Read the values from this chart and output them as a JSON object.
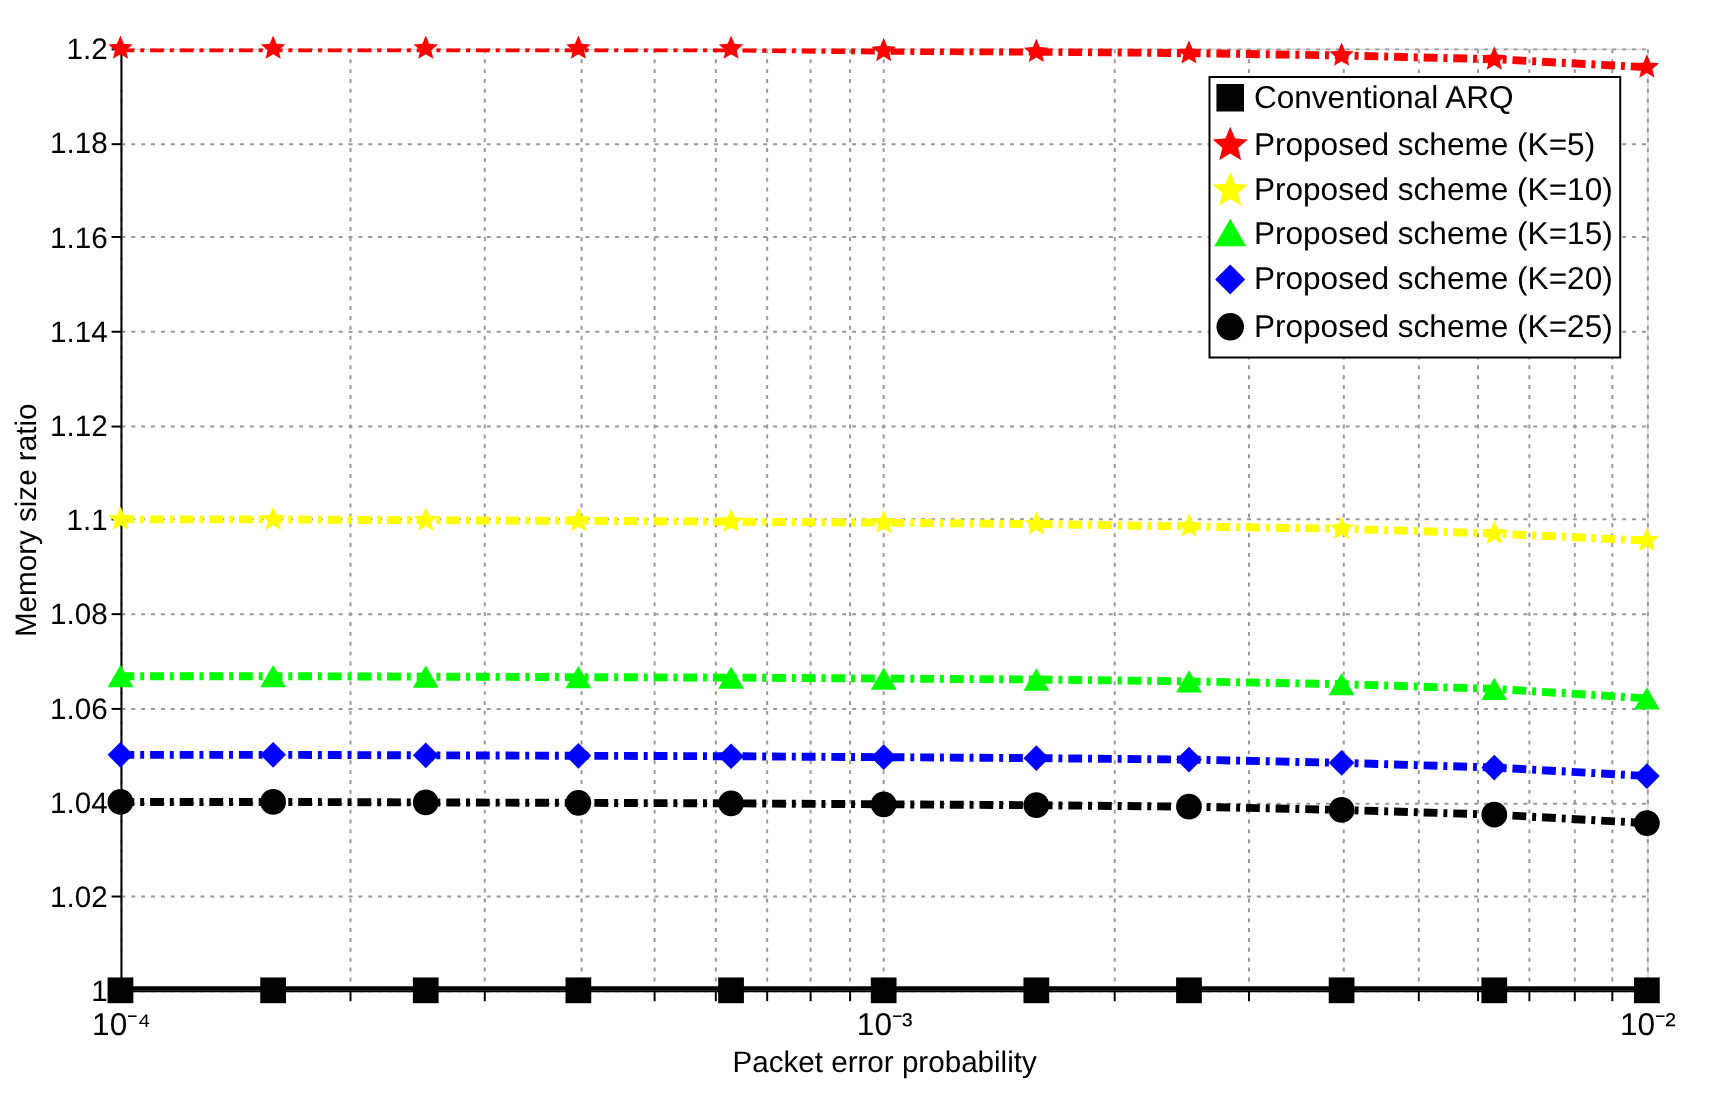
{
  "chart_data": {
    "type": "line",
    "xlabel": "Packet error probability",
    "ylabel": "Memory size ratio",
    "log": "x",
    "x": [
      0.0001,
      0.0001585,
      0.0002512,
      0.0003981,
      0.000631,
      0.001,
      0.001585,
      0.002512,
      0.003981,
      0.00631,
      0.01
    ],
    "series": [
      {
        "name": "Conventional ARQ",
        "color": "#000000",
        "marker": "square",
        "line_style": "solid",
        "values": [
          1,
          1,
          1,
          1,
          1,
          1,
          1,
          1,
          1,
          1,
          1
        ]
      },
      {
        "name": "Proposed scheme (K=5)",
        "color": "#ff0000",
        "marker": "star",
        "line_style": "dashed",
        "values": [
          1.2,
          1.2,
          1.2,
          1.2,
          1.2,
          1.1995,
          1.1993,
          1.199,
          1.1985,
          1.1977,
          1.196
        ]
      },
      {
        "name": "Proposed scheme (K=10)",
        "color": "#ffff00",
        "marker": "star",
        "line_style": "dashed",
        "values": [
          1.1,
          1.1,
          1.0998,
          1.0997,
          1.0995,
          1.0993,
          1.099,
          1.0985,
          1.098,
          1.097,
          1.0955
        ]
      },
      {
        "name": "Proposed scheme (K=15)",
        "color": "#00ff00",
        "marker": "triangle",
        "line_style": "dashed",
        "values": [
          1.0667,
          1.0667,
          1.0666,
          1.0665,
          1.0664,
          1.0662,
          1.066,
          1.0656,
          1.065,
          1.064,
          1.062
        ]
      },
      {
        "name": "Proposed scheme (K=20)",
        "color": "#0000ff",
        "marker": "diamond",
        "line_style": "dashed",
        "values": [
          1.05,
          1.05,
          1.0499,
          1.0498,
          1.0497,
          1.0495,
          1.0493,
          1.049,
          1.0483,
          1.0473,
          1.0455
        ]
      },
      {
        "name": "Proposed scheme (K=25)",
        "color": "#000000",
        "marker": "circle",
        "line_style": "dashed",
        "values": [
          1.04,
          1.04,
          1.0399,
          1.0398,
          1.0397,
          1.0395,
          1.0393,
          1.039,
          1.0383,
          1.0373,
          1.0355
        ]
      }
    ],
    "xlim": [
      0.0001,
      0.01
    ],
    "xticks": [
      {
        "value": 0.0001,
        "label": "10⁻⁴"
      },
      {
        "value": 0.0002,
        "label": null
      },
      {
        "value": 0.0003,
        "label": null
      },
      {
        "value": 0.0004,
        "label": null
      },
      {
        "value": 0.0005,
        "label": null
      },
      {
        "value": 0.0006,
        "label": null
      },
      {
        "value": 0.0007,
        "label": null
      },
      {
        "value": 0.0008,
        "label": null
      },
      {
        "value": 0.0009,
        "label": null
      },
      {
        "value": 0.001,
        "label": "10⁻³"
      },
      {
        "value": 0.002,
        "label": null
      },
      {
        "value": 0.003,
        "label": null
      },
      {
        "value": 0.004,
        "label": null
      },
      {
        "value": 0.005,
        "label": null
      },
      {
        "value": 0.006,
        "label": null
      },
      {
        "value": 0.007,
        "label": null
      },
      {
        "value": 0.008,
        "label": null
      },
      {
        "value": 0.009,
        "label": null
      },
      {
        "value": 0.01,
        "label": "10⁻²"
      }
    ],
    "ylim": [
      1,
      1.2
    ],
    "yticks": [
      1,
      1.02,
      1.04,
      1.06,
      1.08,
      1.1,
      1.12,
      1.14,
      1.16,
      1.18,
      1.2
    ],
    "grid": true,
    "legend": "top right"
  }
}
